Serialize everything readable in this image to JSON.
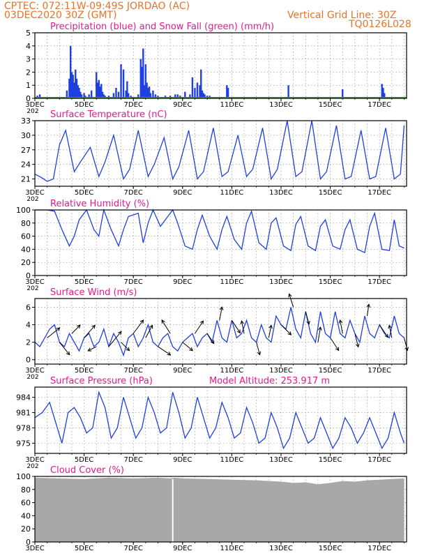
{
  "header": {
    "line1": "CPTEC:   072:11W-09:49S   JORDAO (AC)",
    "line2": "03DEC2020 30Z (GMT)",
    "grid_note": "Vertical Grid Line: 30Z",
    "code": "TQ0126L028"
  },
  "colors": {
    "header": "#e8722a",
    "panel_title": "#e8198c",
    "line": "#1f3fe0",
    "precip_bar": "#1f3fe0",
    "snow": "#2fa52f",
    "cloud_fill": "#a8a8a8",
    "wind_arrow": "#000000",
    "grid": "#888888"
  },
  "x_axis": {
    "tick_labels": [
      "3DEC",
      "5DEC",
      "7DEC",
      "9DEC",
      "11DEC",
      "13DEC",
      "15DEC",
      "17DEC"
    ],
    "tick_days": [
      3,
      5,
      7,
      9,
      11,
      13,
      15,
      17
    ],
    "range_days": [
      3,
      18.1
    ],
    "clipped_under_label": "202"
  },
  "chart_data": [
    {
      "type": "bar",
      "title": "Precipitation (blue) and Snow Fall (green) (mm/h)",
      "yticks": [
        0,
        1,
        2,
        3,
        4,
        5
      ],
      "ylim": [
        0,
        5
      ],
      "grid": true,
      "series": [
        {
          "name": "Precipitation",
          "color": "blue",
          "x_days": [
            3.1,
            3.2,
            3.3,
            4.3,
            4.4,
            4.45,
            4.5,
            4.55,
            4.6,
            4.65,
            4.7,
            4.75,
            4.8,
            4.85,
            4.9,
            5.0,
            5.05,
            5.2,
            5.3,
            5.5,
            5.55,
            5.6,
            5.65,
            5.7,
            5.75,
            5.8,
            5.85,
            6.0,
            6.2,
            6.3,
            6.4,
            6.5,
            6.6,
            6.7,
            6.75,
            6.8,
            6.9,
            7.2,
            7.3,
            7.35,
            7.4,
            7.45,
            7.5,
            7.55,
            7.6,
            7.65,
            7.7,
            7.8,
            7.9,
            8.0,
            8.3,
            8.5,
            8.7,
            8.8,
            8.9,
            9.1,
            9.3,
            9.4,
            9.5,
            9.6,
            9.7,
            9.75,
            9.8,
            9.85,
            9.9,
            10.0,
            10.1,
            10.8,
            10.85,
            12.1,
            13.3,
            15.5,
            17.1,
            17.15,
            17.2
          ],
          "values": [
            0.2,
            0.3,
            0.1,
            0.6,
            1.5,
            4.0,
            2.0,
            1.8,
            1.2,
            2.2,
            1.5,
            1.0,
            0.8,
            0.5,
            0.3,
            0.4,
            0.2,
            0.3,
            0.6,
            2.0,
            1.2,
            1.4,
            0.9,
            1.1,
            0.5,
            0.3,
            0.2,
            0.2,
            0.4,
            0.8,
            0.5,
            2.6,
            2.2,
            0.6,
            1.3,
            0.4,
            0.2,
            0.3,
            3.0,
            2.4,
            3.8,
            1.0,
            2.6,
            1.2,
            0.8,
            0.9,
            0.4,
            0.6,
            0.3,
            0.2,
            0.2,
            0.2,
            0.3,
            0.3,
            0.2,
            0.5,
            0.3,
            1.6,
            0.8,
            1.2,
            1.0,
            2.2,
            0.6,
            0.4,
            0.3,
            0.2,
            0.2,
            1.0,
            0.8,
            0.1,
            1.0,
            0.7,
            1.1,
            0.8,
            0.4
          ]
        },
        {
          "name": "Snow Fall",
          "color": "green",
          "constant_value": 0
        }
      ]
    },
    {
      "type": "line",
      "title": "Surface Temperature (nC)",
      "yticks": [
        21,
        24,
        27,
        30,
        33
      ],
      "ylim": [
        19.5,
        33
      ],
      "grid": true,
      "series": [
        {
          "name": "Temperature",
          "color": "blue",
          "x_days": [
            3.0,
            3.3,
            3.5,
            3.75,
            4.0,
            4.25,
            4.6,
            4.85,
            5.25,
            5.6,
            5.85,
            6.2,
            6.6,
            6.85,
            7.2,
            7.6,
            7.85,
            8.25,
            8.6,
            8.85,
            9.25,
            9.6,
            9.85,
            10.25,
            10.6,
            10.85,
            11.25,
            11.6,
            11.85,
            12.25,
            12.6,
            12.85,
            13.25,
            13.6,
            13.85,
            14.25,
            14.6,
            14.85,
            15.25,
            15.6,
            15.85,
            16.25,
            16.6,
            16.85,
            17.25,
            17.6,
            17.85,
            18.0
          ],
          "values": [
            22.0,
            21.2,
            20.5,
            21.0,
            28.0,
            31.0,
            22.5,
            24.5,
            27.5,
            21.5,
            24.5,
            30.0,
            21.0,
            23.0,
            31.0,
            21.5,
            24.0,
            29.5,
            21.0,
            23.5,
            31.0,
            21.0,
            22.5,
            31.5,
            21.5,
            22.5,
            30.0,
            21.5,
            23.0,
            31.5,
            21.0,
            23.0,
            33.0,
            21.5,
            22.5,
            33.0,
            21.0,
            22.5,
            32.0,
            21.0,
            21.5,
            31.0,
            21.0,
            21.5,
            31.5,
            21.0,
            22.0,
            32.0
          ]
        }
      ]
    },
    {
      "type": "line",
      "title": "Relative Humidity (%)",
      "yticks": [
        0,
        20,
        40,
        60,
        80,
        100
      ],
      "ylim": [
        0,
        100
      ],
      "grid": true,
      "series": [
        {
          "name": "Relative Humidity",
          "color": "blue",
          "x_days": [
            3.0,
            3.5,
            3.8,
            4.1,
            4.4,
            4.6,
            4.8,
            5.1,
            5.4,
            5.6,
            5.8,
            6.1,
            6.4,
            6.6,
            6.8,
            7.2,
            7.4,
            7.6,
            7.8,
            8.1,
            8.4,
            8.6,
            8.8,
            9.1,
            9.4,
            9.6,
            9.8,
            10.1,
            10.4,
            10.6,
            10.8,
            11.1,
            11.4,
            11.6,
            11.8,
            12.1,
            12.4,
            12.6,
            12.8,
            13.1,
            13.4,
            13.6,
            13.8,
            14.1,
            14.4,
            14.6,
            14.8,
            15.1,
            15.4,
            15.6,
            15.8,
            16.1,
            16.4,
            16.6,
            16.8,
            17.1,
            17.4,
            17.6,
            17.8,
            18.0
          ],
          "values": [
            100,
            100,
            98,
            70,
            45,
            60,
            85,
            100,
            70,
            60,
            100,
            70,
            45,
            70,
            90,
            95,
            50,
            80,
            100,
            75,
            90,
            100,
            80,
            45,
            40,
            70,
            92,
            60,
            40,
            70,
            90,
            55,
            40,
            80,
            98,
            50,
            40,
            80,
            88,
            45,
            38,
            78,
            90,
            45,
            38,
            75,
            85,
            45,
            40,
            70,
            85,
            40,
            35,
            75,
            95,
            40,
            38,
            85,
            45,
            42
          ]
        }
      ]
    },
    {
      "type": "line",
      "title": "Surface Wind (m/s)",
      "yticks": [
        0,
        2,
        4,
        6
      ],
      "ylim": [
        -0.5,
        7
      ],
      "grid": true,
      "series": [
        {
          "name": "Wind Speed",
          "color": "blue",
          "x_days": [
            3.0,
            3.2,
            3.4,
            3.6,
            3.8,
            4.0,
            4.2,
            4.4,
            4.6,
            4.8,
            5.0,
            5.2,
            5.4,
            5.6,
            5.8,
            6.0,
            6.2,
            6.4,
            6.6,
            6.8,
            7.0,
            7.2,
            7.4,
            7.6,
            7.8,
            8.0,
            8.2,
            8.4,
            8.6,
            8.8,
            9.0,
            9.2,
            9.4,
            9.6,
            9.8,
            10.0,
            10.2,
            10.4,
            10.6,
            10.8,
            11.0,
            11.2,
            11.4,
            11.6,
            11.8,
            12.0,
            12.2,
            12.4,
            12.6,
            12.8,
            13.0,
            13.2,
            13.4,
            13.6,
            13.8,
            14.0,
            14.2,
            14.4,
            14.6,
            14.8,
            15.0,
            15.2,
            15.4,
            15.6,
            15.8,
            16.0,
            16.2,
            16.4,
            16.6,
            16.8,
            17.0,
            17.2,
            17.4,
            17.6,
            17.8,
            18.0
          ],
          "values": [
            2.0,
            1.5,
            2.5,
            3.5,
            4.0,
            2.0,
            1.5,
            3.0,
            2.0,
            1.0,
            2.5,
            3.0,
            1.5,
            2.0,
            3.5,
            1.5,
            3.0,
            2.0,
            0.5,
            2.5,
            3.0,
            1.5,
            2.5,
            4.0,
            2.0,
            1.5,
            2.5,
            3.0,
            1.5,
            1.0,
            2.0,
            2.5,
            3.0,
            1.5,
            2.5,
            3.0,
            2.0,
            4.5,
            2.5,
            2.0,
            4.5,
            2.5,
            3.0,
            4.5,
            2.5,
            2.0,
            4.0,
            2.5,
            2.0,
            5.0,
            4.0,
            3.5,
            6.0,
            3.5,
            2.5,
            5.5,
            3.0,
            2.0,
            5.5,
            3.0,
            2.5,
            5.5,
            3.0,
            2.5,
            4.5,
            3.0,
            2.0,
            5.0,
            3.0,
            2.5,
            4.0,
            3.0,
            2.5,
            5.0,
            3.0,
            2.5
          ]
        },
        {
          "name": "Wind Vectors",
          "color": "black",
          "x_days": [
            3.5,
            4.0,
            4.5,
            5.0,
            5.5,
            6.0,
            6.5,
            7.0,
            7.5,
            8.0,
            8.5,
            9.0,
            9.5,
            10.0,
            10.5,
            11.0,
            11.5,
            12.0,
            12.5,
            13.0,
            13.5,
            14.0,
            14.5,
            15.0,
            15.5,
            16.0,
            16.5,
            17.0,
            17.5,
            18.0
          ],
          "u_ms": [
            1.5,
            1.2,
            1.0,
            1.3,
            -1.0,
            1.5,
            1.0,
            1.2,
            0.8,
            1.5,
            -1.0,
            1.2,
            1.0,
            0.8,
            0.3,
            1.0,
            -0.3,
            0.4,
            0.3,
            1.2,
            -0.5,
            0.4,
            0.3,
            1.0,
            -0.3,
            0.4,
            0.2,
            1.0,
            -0.3,
            0.4
          ],
          "v_ms": [
            1.2,
            -1.5,
            1.0,
            1.5,
            -0.5,
            1.8,
            -1.0,
            1.6,
            1.5,
            -1.0,
            1.6,
            -1.0,
            1.5,
            -1.2,
            1.6,
            -1.5,
            1.5,
            -1.5,
            1.5,
            -1.2,
            1.6,
            -1.5,
            1.8,
            -1.5,
            1.6,
            -1.6,
            1.4,
            -1.5,
            1.5,
            -1.5
          ]
        }
      ]
    },
    {
      "type": "line",
      "title": "Surface Pressure (hPa)",
      "subtitle": "Model Altitude: 253.917 m",
      "yticks": [
        975,
        978,
        981,
        984
      ],
      "ylim": [
        973,
        986
      ],
      "grid": true,
      "series": [
        {
          "name": "Surface Pressure",
          "color": "blue",
          "x_days": [
            3.0,
            3.3,
            3.6,
            3.85,
            4.1,
            4.35,
            4.6,
            4.85,
            5.1,
            5.35,
            5.6,
            5.85,
            6.1,
            6.35,
            6.6,
            6.85,
            7.1,
            7.35,
            7.6,
            7.85,
            8.1,
            8.35,
            8.6,
            8.85,
            9.1,
            9.35,
            9.6,
            9.85,
            10.1,
            10.35,
            10.6,
            10.85,
            11.1,
            11.35,
            11.6,
            11.85,
            12.1,
            12.35,
            12.6,
            12.85,
            13.1,
            13.35,
            13.6,
            13.85,
            14.1,
            14.35,
            14.6,
            14.85,
            15.1,
            15.35,
            15.6,
            15.85,
            16.1,
            16.35,
            16.6,
            16.85,
            17.1,
            17.35,
            17.6,
            17.85,
            18.0
          ],
          "values": [
            980,
            981,
            983,
            979,
            975,
            981,
            982,
            980,
            977,
            978,
            985,
            982,
            976,
            978,
            984,
            980,
            976,
            978,
            984,
            981,
            977,
            978,
            985,
            981,
            976,
            978,
            984,
            980,
            976,
            978,
            983,
            980,
            976,
            977,
            982,
            979,
            975,
            976,
            981,
            978,
            974,
            976,
            981,
            978,
            975,
            976,
            980,
            977,
            974,
            976,
            980,
            978,
            975,
            977,
            980,
            977,
            974,
            976,
            981,
            977,
            975
          ]
        }
      ]
    },
    {
      "type": "area",
      "title": "Cloud Cover (%)",
      "yticks": [
        0,
        20,
        40,
        60,
        80,
        100
      ],
      "ylim": [
        0,
        100
      ],
      "grid": true,
      "series": [
        {
          "name": "Cloud Cover",
          "color": "gray",
          "x_days": [
            3.0,
            4.0,
            5.0,
            6.0,
            7.0,
            8.0,
            8.5,
            8.7,
            9.0,
            10.0,
            11.0,
            12.0,
            12.5,
            13.0,
            13.5,
            14.0,
            14.5,
            15.0,
            15.5,
            16.0,
            16.5,
            17.0,
            17.5,
            18.0
          ],
          "values": [
            98,
            97,
            96,
            98,
            97,
            98,
            97,
            98,
            97,
            96,
            95,
            94,
            93,
            92,
            90,
            91,
            88,
            90,
            93,
            92,
            94,
            95,
            96,
            97
          ]
        }
      ]
    }
  ]
}
